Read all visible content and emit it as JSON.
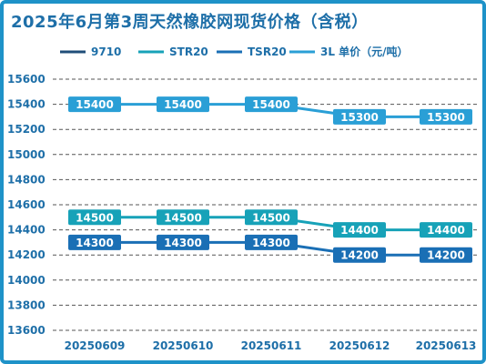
{
  "chart_data": {
    "type": "line",
    "title": "2025年6月第3周天然橡胶网现货价格（含税）",
    "categories": [
      "20250609",
      "20250610",
      "20250611",
      "20250612",
      "20250613"
    ],
    "series": [
      {
        "name": "9710",
        "values": [
          null,
          null,
          null,
          null,
          null
        ],
        "color": "#1f4e79"
      },
      {
        "name": "STR20",
        "values": [
          14500,
          14500,
          14500,
          14400,
          14400
        ],
        "color": "#17a2b8"
      },
      {
        "name": "TSR20",
        "values": [
          14300,
          14300,
          14300,
          14200,
          14200
        ],
        "color": "#1a6fb5"
      },
      {
        "name": "3L 单价（元/吨）",
        "values": [
          15400,
          15400,
          15400,
          15300,
          15300
        ],
        "color": "#2a9fd6"
      }
    ],
    "xlabel": "",
    "ylabel": "",
    "ylim": [
      13600,
      15600
    ],
    "yticks": [
      13600,
      13800,
      14000,
      14200,
      14400,
      14600,
      14800,
      15000,
      15200,
      15400,
      15600
    ],
    "grid": true,
    "legend": "top"
  }
}
